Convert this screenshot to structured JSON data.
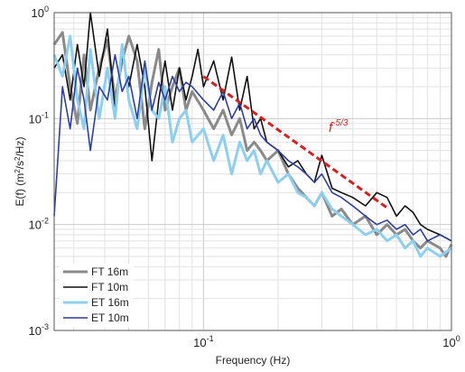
{
  "chart_data": {
    "type": "line",
    "xscale": "log",
    "yscale": "log",
    "xlim": [
      0.025,
      1
    ],
    "ylim": [
      0.001,
      1
    ],
    "xlabel": "Frequency (Hz)",
    "ylabel_parts": [
      "E(f) (m",
      "2",
      "/s",
      "2",
      "/Hz)"
    ],
    "grid": true,
    "legend_position": "lower-left",
    "x_ticks": [
      {
        "value": 0.1,
        "base": "10",
        "exp": "-1"
      },
      {
        "value": 1,
        "base": "10",
        "exp": "0"
      }
    ],
    "y_ticks": [
      {
        "value": 0.001,
        "base": "10",
        "exp": "-3"
      },
      {
        "value": 0.01,
        "base": "10",
        "exp": "-2"
      },
      {
        "value": 0.1,
        "base": "10",
        "exp": "-1"
      },
      {
        "value": 1,
        "base": "10",
        "exp": "0"
      }
    ],
    "series": [
      {
        "name": "FT 16m",
        "color": "#8a8a8a",
        "width": 3,
        "x": [
          0.025,
          0.027,
          0.029,
          0.031,
          0.033,
          0.035,
          0.038,
          0.041,
          0.044,
          0.047,
          0.05,
          0.054,
          0.058,
          0.062,
          0.066,
          0.07,
          0.075,
          0.08,
          0.085,
          0.09,
          0.1,
          0.11,
          0.12,
          0.13,
          0.14,
          0.15,
          0.16,
          0.17,
          0.18,
          0.2,
          0.22,
          0.24,
          0.26,
          0.28,
          0.3,
          0.33,
          0.36,
          0.4,
          0.45,
          0.5,
          0.55,
          0.6,
          0.65,
          0.7,
          0.75,
          0.8,
          0.9,
          0.95,
          1.0
        ],
        "y": [
          0.5,
          0.65,
          0.2,
          0.09,
          0.4,
          0.12,
          0.3,
          0.55,
          0.15,
          0.35,
          0.6,
          0.35,
          0.08,
          0.22,
          0.45,
          0.12,
          0.2,
          0.3,
          0.12,
          0.18,
          0.12,
          0.08,
          0.12,
          0.07,
          0.1,
          0.05,
          0.06,
          0.05,
          0.04,
          0.05,
          0.03,
          0.022,
          0.018,
          0.015,
          0.02,
          0.012,
          0.014,
          0.01,
          0.012,
          0.008,
          0.01,
          0.008,
          0.009,
          0.007,
          0.006,
          0.007,
          0.006,
          0.005,
          0.0065
        ]
      },
      {
        "name": "FT 10m",
        "color": "#111111",
        "width": 1.6,
        "x": [
          0.025,
          0.027,
          0.029,
          0.031,
          0.033,
          0.035,
          0.038,
          0.041,
          0.044,
          0.047,
          0.05,
          0.054,
          0.058,
          0.062,
          0.066,
          0.07,
          0.075,
          0.08,
          0.085,
          0.09,
          0.095,
          0.1,
          0.11,
          0.12,
          0.13,
          0.14,
          0.15,
          0.16,
          0.17,
          0.18,
          0.2,
          0.22,
          0.24,
          0.26,
          0.28,
          0.3,
          0.33,
          0.36,
          0.4,
          0.45,
          0.5,
          0.55,
          0.6,
          0.65,
          0.7,
          0.75,
          0.8,
          0.9,
          1.0
        ],
        "y": [
          0.3,
          0.4,
          0.15,
          0.5,
          0.2,
          1.0,
          0.25,
          0.7,
          0.12,
          0.4,
          0.2,
          0.5,
          0.2,
          0.04,
          0.15,
          0.35,
          0.12,
          0.3,
          0.15,
          0.25,
          0.45,
          0.2,
          0.35,
          0.15,
          0.38,
          0.12,
          0.25,
          0.08,
          0.1,
          0.06,
          0.05,
          0.035,
          0.04,
          0.03,
          0.025,
          0.045,
          0.022,
          0.02,
          0.018,
          0.015,
          0.02,
          0.018,
          0.012,
          0.015,
          0.013,
          0.01,
          0.009,
          0.008,
          0.007
        ]
      },
      {
        "name": "ET 16m",
        "color": "#8ecfef",
        "width": 3,
        "x": [
          0.025,
          0.027,
          0.029,
          0.031,
          0.033,
          0.035,
          0.038,
          0.041,
          0.044,
          0.047,
          0.05,
          0.054,
          0.058,
          0.062,
          0.066,
          0.07,
          0.075,
          0.08,
          0.085,
          0.09,
          0.1,
          0.11,
          0.12,
          0.13,
          0.14,
          0.15,
          0.16,
          0.17,
          0.18,
          0.2,
          0.22,
          0.24,
          0.26,
          0.28,
          0.3,
          0.33,
          0.36,
          0.4,
          0.45,
          0.5,
          0.55,
          0.6,
          0.65,
          0.7,
          0.75,
          0.8,
          0.9,
          1.0
        ],
        "y": [
          0.4,
          0.25,
          0.6,
          0.15,
          0.08,
          0.45,
          0.1,
          0.3,
          0.1,
          0.5,
          0.15,
          0.08,
          0.3,
          0.12,
          0.1,
          0.2,
          0.06,
          0.1,
          0.12,
          0.06,
          0.08,
          0.04,
          0.07,
          0.03,
          0.06,
          0.04,
          0.05,
          0.03,
          0.04,
          0.025,
          0.03,
          0.02,
          0.018,
          0.015,
          0.02,
          0.014,
          0.012,
          0.01,
          0.008,
          0.009,
          0.007,
          0.008,
          0.006,
          0.007,
          0.005,
          0.006,
          0.005,
          0.006
        ]
      },
      {
        "name": "ET 10m",
        "color": "#2f3f9c",
        "width": 1.6,
        "x": [
          0.025,
          0.027,
          0.029,
          0.031,
          0.033,
          0.035,
          0.038,
          0.041,
          0.044,
          0.047,
          0.05,
          0.054,
          0.058,
          0.062,
          0.066,
          0.07,
          0.075,
          0.08,
          0.085,
          0.09,
          0.1,
          0.11,
          0.12,
          0.13,
          0.14,
          0.15,
          0.16,
          0.17,
          0.18,
          0.2,
          0.22,
          0.24,
          0.26,
          0.28,
          0.3,
          0.33,
          0.36,
          0.4,
          0.45,
          0.5,
          0.55,
          0.6,
          0.65,
          0.7,
          0.75,
          0.8,
          0.9,
          1.0
        ],
        "y": [
          0.012,
          0.2,
          0.08,
          0.3,
          0.15,
          0.05,
          0.2,
          0.15,
          0.4,
          0.18,
          0.25,
          0.1,
          0.35,
          0.12,
          0.22,
          0.15,
          0.25,
          0.18,
          0.22,
          0.2,
          0.15,
          0.12,
          0.18,
          0.1,
          0.14,
          0.08,
          0.1,
          0.07,
          0.06,
          0.05,
          0.04,
          0.035,
          0.03,
          0.025,
          0.03,
          0.02,
          0.018,
          0.015,
          0.012,
          0.01,
          0.011,
          0.009,
          0.01,
          0.008,
          0.009,
          0.007,
          0.008,
          0.007
        ]
      }
    ],
    "reference_line": {
      "label_base": "f",
      "label_exp": "-5/3",
      "color": "#d62020",
      "style": "dashed",
      "x": [
        0.1,
        0.55
      ],
      "y": [
        0.25,
        0.0144
      ]
    }
  }
}
